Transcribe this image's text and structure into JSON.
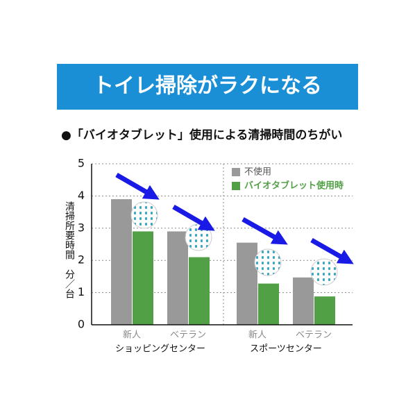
{
  "chart_data": {
    "type": "bar",
    "title": "トイレ掃除がラクになる",
    "subtitle": "●「バイオタブレット」使用による清掃時間のちがい",
    "y_label": "清掃所要時間　分／台",
    "categories": [
      "新人",
      "ベテラン",
      "新人",
      "ベテラン"
    ],
    "group_labels": [
      "ショッピングセンター",
      "スポーツセンター"
    ],
    "series": [
      {
        "name": "不使用",
        "color": "#999999",
        "values": [
          3.9,
          2.9,
          2.55,
          1.47
        ]
      },
      {
        "name": "バイオタブレット使用時",
        "color": "#52a046",
        "values": [
          2.9,
          2.1,
          1.28,
          0.88
        ]
      }
    ],
    "ylim": [
      0,
      5
    ],
    "yticks": [
      0,
      1,
      2,
      3,
      4,
      5
    ],
    "grid": true
  }
}
